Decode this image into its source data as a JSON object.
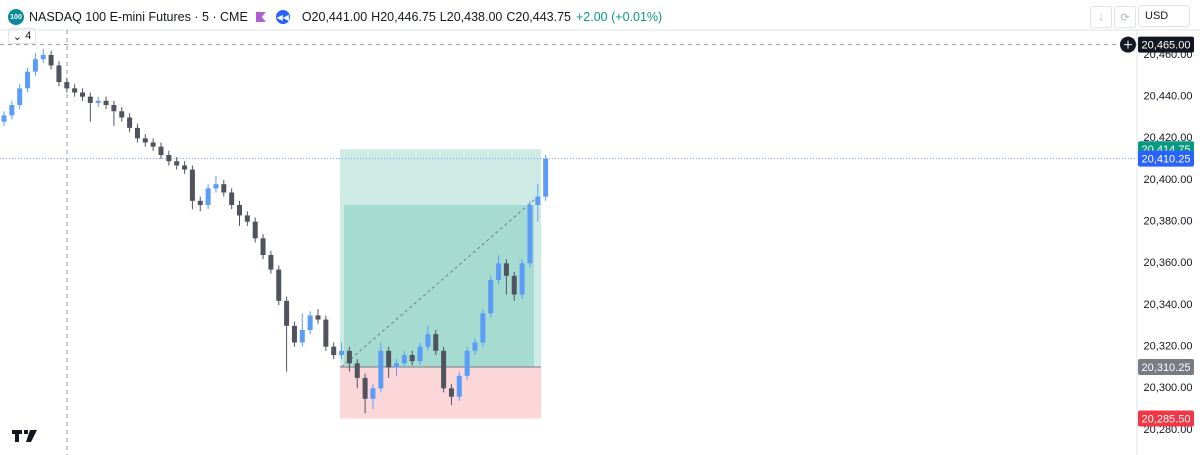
{
  "header": {
    "badge": "100",
    "symbol": "NASDAQ 100 E-mini Futures · 5 · CME",
    "ohlc": [
      {
        "letter": "O",
        "text": "20,441.00"
      },
      {
        "letter": "H",
        "text": "20,446.75"
      },
      {
        "letter": "L",
        "text": "20,438.00"
      },
      {
        "letter": "C",
        "text": "20,443.75"
      }
    ],
    "change": "+2.00 (+0.01%)",
    "indicator_count": "4",
    "currency": "USD"
  },
  "chart_data": {
    "type": "candlestick",
    "up_color": "#5b9cf6",
    "down_color": "#50535e",
    "open": [
      20428,
      20431,
      20436,
      20444,
      20452,
      20458,
      20460,
      20455,
      20447,
      20444,
      20442,
      20440,
      20437,
      20438,
      20436,
      20433,
      20430,
      20425,
      20420,
      20418,
      20416,
      20412,
      20409,
      20407,
      20405,
      20390,
      20388,
      20396,
      20398,
      20394,
      20388,
      20383,
      20380,
      20372,
      20364,
      20357,
      20342,
      20330,
      20322,
      20328,
      20335,
      20333,
      20320,
      20316,
      20318,
      20312,
      20305,
      20295,
      20300,
      20318,
      20310,
      20312,
      20316,
      20313,
      20320,
      20326,
      20318,
      20300,
      20296,
      20306,
      20318,
      20322,
      20336,
      20352,
      20360,
      20354,
      20345,
      20360,
      20388,
      20392
    ],
    "high": [
      20433,
      20438,
      20446,
      20454,
      20461,
      20463,
      20462,
      20457,
      20449,
      20446,
      20444,
      20442,
      20440,
      20440,
      20438,
      20435,
      20432,
      20427,
      20422,
      20420,
      20418,
      20414,
      20411,
      20409,
      20407,
      20392,
      20398,
      20402,
      20400,
      20396,
      20390,
      20385,
      20382,
      20374,
      20366,
      20359,
      20344,
      20332,
      20336,
      20337,
      20338,
      20335,
      20322,
      20322,
      20320,
      20314,
      20307,
      20302,
      20322,
      20320,
      20314,
      20318,
      20318,
      20322,
      20330,
      20328,
      20320,
      20302,
      20308,
      20320,
      20324,
      20338,
      20354,
      20364,
      20362,
      20356,
      20362,
      20390,
      20398,
      20412
    ],
    "low": [
      20426,
      20429,
      20434,
      20442,
      20450,
      20456,
      20453,
      20445,
      20442,
      20440,
      20438,
      20428,
      20435,
      20434,
      20426,
      20428,
      20423,
      20418,
      20416,
      20414,
      20410,
      20407,
      20405,
      20403,
      20386,
      20385,
      20386,
      20394,
      20392,
      20386,
      20378,
      20378,
      20370,
      20362,
      20355,
      20340,
      20308,
      20320,
      20320,
      20326,
      20331,
      20318,
      20314,
      20314,
      20308,
      20300,
      20288,
      20290,
      20298,
      20305,
      20306,
      20310,
      20311,
      20311,
      20318,
      20316,
      20298,
      20292,
      20294,
      20304,
      20316,
      20320,
      20334,
      20350,
      20345,
      20342,
      20343,
      20358,
      20380,
      20390
    ],
    "close": [
      20431,
      20436,
      20444,
      20452,
      20458,
      20460,
      20455,
      20447,
      20444,
      20442,
      20440,
      20437,
      20438,
      20436,
      20433,
      20430,
      20425,
      20420,
      20418,
      20416,
      20412,
      20409,
      20407,
      20405,
      20390,
      20388,
      20396,
      20398,
      20394,
      20388,
      20383,
      20380,
      20372,
      20364,
      20357,
      20342,
      20330,
      20322,
      20328,
      20335,
      20333,
      20320,
      20316,
      20318,
      20312,
      20305,
      20295,
      20300,
      20318,
      20310,
      20312,
      20316,
      20313,
      20320,
      20326,
      20318,
      20300,
      20296,
      20306,
      20318,
      20322,
      20336,
      20352,
      20360,
      20354,
      20345,
      20360,
      20388,
      20392,
      20410.25
    ],
    "ylim": [
      20268,
      20472
    ],
    "yticks": [
      {
        "value": 20280,
        "label": "20,280.00"
      },
      {
        "value": 20300,
        "label": "20,300.00"
      },
      {
        "value": 20320,
        "label": "20,320.00"
      },
      {
        "value": 20340,
        "label": "20,340.00"
      },
      {
        "value": 20360,
        "label": "20,360.00"
      },
      {
        "value": 20380,
        "label": "20,380.00"
      },
      {
        "value": 20400,
        "label": "20,400.00"
      },
      {
        "value": 20420,
        "label": "20,420.00"
      },
      {
        "value": 20440,
        "label": "20,440.00"
      },
      {
        "value": 20460,
        "label": "20,460.00"
      }
    ],
    "position": {
      "target": {
        "value": 20414.75,
        "label": "20,414.75"
      },
      "entry": {
        "value": 20310.25,
        "label": "20,310.25"
      },
      "stop": {
        "value": 20285.5,
        "label": "20,285.50"
      }
    },
    "last_price": {
      "value": 20410.25,
      "label": "20,410.25",
      "color": "#2962ff"
    },
    "crosshair": {
      "value": 20465,
      "label": "20,465.00"
    }
  }
}
